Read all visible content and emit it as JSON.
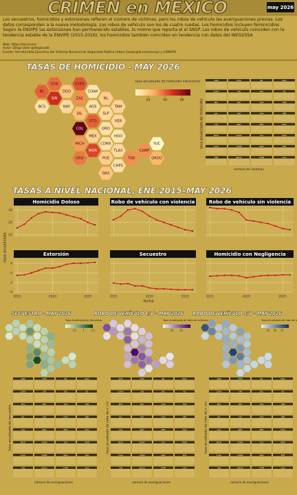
{
  "header": {
    "title": "CRIMEN en MEXICO",
    "date": "may 2026"
  },
  "intro": [
    "Los secuestros, homicidios y extorsiones refieren el número de víctimas, pero los robos de vehículo las averiguaciones previas. Los datos corresponden a la nueva metodología. Los robos de vehículo son los de cuatro ruedas. Los homicidios incluyen feminicidios",
    "Según la ENVIPE las extorsiones han permanecido estables, lo mismo que reporta el el SNSP. Los robos de vehículo coinciden con la tendencia estable de la ENVIPE (2015-2016), los homicidios también coinciden en tendencia con datos del INEGI/SSA"
  ],
  "credits": [
    "Web: https://elcrimen/",
    "Autor: Diego Valle @diegovalle",
    "Fuente: Secretariado Ejecutivo del Sistema Nacional de Seguridad Pública (https://www.gob.mx/sesnsp) y CONAPO"
  ],
  "states": [
    "SON",
    "CHIH",
    "BC",
    "DGO",
    "COAH",
    "SIN",
    "ZAC",
    "NL",
    "BCS",
    "NAY",
    "AGS",
    "TAM",
    "JAL",
    "SLP",
    "GTO",
    "VER",
    "COL",
    "QRO",
    "MEX",
    "HGO",
    "MICH",
    "CDMX",
    "YUC",
    "MOR",
    "TLAX",
    "CAMP",
    "GRO",
    "PUE",
    "TAB",
    "QROO",
    "CHPS",
    "OAX"
  ],
  "homicide_map": {
    "type": "hexmap",
    "title": "TASAS DE HOMICIDIO - MAY 2026",
    "legend_title": "tasa anualizada de homicidio intencional",
    "lim": [
      5,
      70
    ],
    "ticks": [
      20,
      40,
      60
    ],
    "colors": [
      "#fff6c4",
      "#fdae61",
      "#d7301f",
      "#67000d"
    ],
    "values": [
      38,
      42,
      40,
      20,
      10,
      50,
      32,
      18,
      12,
      14,
      12,
      16,
      22,
      14,
      40,
      15,
      72,
      12,
      16,
      10,
      30,
      12,
      5,
      45,
      14,
      32,
      36,
      18,
      32,
      24,
      12,
      20
    ]
  },
  "homicide_panels": {
    "y_label": "tasa anualizada de homicidio",
    "legend_title": "número de víctimas"
  },
  "trends": {
    "title": "TASAS A NIVEL NACIONAL, ENE 2015–MAY 2026",
    "y_label": "tasa anualizada",
    "x_label": "fecha"
  },
  "chart_data": [
    {
      "type": "line",
      "title": "Homicidio Doloso",
      "x": [
        2015,
        2016,
        2017,
        2018,
        2019,
        2020,
        2021,
        2022,
        2023,
        2024,
        2025,
        2026
      ],
      "values": [
        15.5,
        18.5,
        23.5,
        27,
        28.5,
        28,
        27.5,
        26,
        24.5,
        23,
        20,
        18
      ],
      "color": "#d7191c",
      "xlim": [
        2014.5,
        2026.5
      ],
      "xticks": [
        2015,
        2020,
        2025
      ],
      "ylim": [
        8,
        33
      ],
      "yticks": [
        10,
        20,
        30
      ]
    },
    {
      "type": "line",
      "title": "Robo de vehículo con violencia",
      "x": [
        2015,
        2016,
        2017,
        2018,
        2019,
        2020,
        2021,
        2022,
        2023,
        2024,
        2025,
        2026
      ],
      "values": [
        22,
        25,
        30,
        31,
        29,
        25,
        22,
        20,
        18,
        16,
        14,
        13
      ],
      "color": "#d7191c",
      "xlim": [
        2014.5,
        2026.5
      ],
      "xticks": [
        2015,
        2020,
        2025
      ],
      "ylim": [
        8,
        33
      ],
      "yticks": [
        10,
        20,
        30
      ]
    },
    {
      "type": "line",
      "title": "Robo de vehículo sin violencia",
      "x": [
        2015,
        2016,
        2017,
        2018,
        2019,
        2020,
        2021,
        2022,
        2023,
        2024,
        2025,
        2026
      ],
      "values": [
        32,
        31,
        31,
        30,
        28,
        22,
        21,
        20,
        19,
        17,
        15,
        14
      ],
      "color": "#d7191c",
      "xlim": [
        2014.5,
        2026.5
      ],
      "xticks": [
        2015,
        2020,
        2025
      ],
      "ylim": [
        8,
        33
      ],
      "yticks": [
        10,
        20,
        30
      ]
    },
    {
      "type": "line",
      "title": "Extorsión",
      "x": [
        2015,
        2016,
        2017,
        2018,
        2019,
        2020,
        2021,
        2022,
        2023,
        2024,
        2025,
        2026
      ],
      "values": [
        3.5,
        3.6,
        4,
        4.5,
        5,
        5,
        5.3,
        5.8,
        6,
        6,
        6.1,
        6.2
      ],
      "color": "#d7191c",
      "xlim": [
        2014.5,
        2026.5
      ],
      "xticks": [
        2015,
        2020,
        2025
      ],
      "ylim": [
        0,
        7
      ],
      "yticks": [
        0,
        2,
        4,
        6
      ]
    },
    {
      "type": "line",
      "title": "Secuestro",
      "x": [
        2015,
        2016,
        2017,
        2018,
        2019,
        2020,
        2021,
        2022,
        2023,
        2024,
        2025,
        2026
      ],
      "values": [
        1.9,
        1.7,
        1.8,
        1.3,
        1.3,
        0.9,
        0.7,
        0.7,
        0.6,
        0.5,
        0.5,
        0.5
      ],
      "color": "#d7191c",
      "xlim": [
        2014.5,
        2026.5
      ],
      "xticks": [
        2015,
        2020,
        2025
      ],
      "ylim": [
        0,
        7
      ],
      "yticks": [
        0,
        2,
        4,
        6
      ]
    },
    {
      "type": "line",
      "title": "Homicidio con Negligencia",
      "x": [
        2015,
        2016,
        2017,
        2018,
        2019,
        2020,
        2021,
        2022,
        2023,
        2024,
        2025,
        2026
      ],
      "values": [
        3.3,
        3.4,
        3.5,
        3.5,
        3.4,
        3,
        3.2,
        3.4,
        3.5,
        3.5,
        3.6,
        3.6
      ],
      "color": "#d7191c",
      "xlim": [
        2014.5,
        2026.5
      ],
      "xticks": [
        2015,
        2020,
        2025
      ],
      "ylim": [
        0,
        7
      ],
      "yticks": [
        0,
        2,
        4,
        6
      ]
    }
  ],
  "crime_maps": [
    {
      "type": "hexmap",
      "title": "SECUESTRO - MAY 2026",
      "legend_title": "Tasa Anualizada de Secuestro",
      "lim": [
        0,
        1.5
      ],
      "ticks": [
        0.5,
        1,
        1.5
      ],
      "colors": [
        "#e5f5e0",
        "#00441b"
      ],
      "values": [
        0.3,
        0.4,
        0.2,
        0.2,
        0.2,
        0.3,
        0.8,
        0.3,
        0.1,
        0.2,
        0.1,
        0.6,
        0.3,
        0.3,
        0.2,
        0.5,
        0.6,
        0.3,
        0.9,
        0.3,
        0.7,
        0.5,
        0.1,
        1.4,
        0.4,
        0.2,
        0.7,
        0.6,
        0.5,
        0.3,
        0.4,
        0.3
      ]
    },
    {
      "type": "hexmap",
      "title": "ROBO DE VEHÍCULO C/V - MAY 2026",
      "legend_title": "Tasa Anualizada de robo de vehículo c/v",
      "lim": [
        0,
        60
      ],
      "ticks": [
        20,
        40
      ],
      "colors": [
        "#efedf5",
        "#3f007d"
      ],
      "values": [
        10,
        6,
        40,
        5,
        4,
        22,
        30,
        8,
        3,
        10,
        4,
        12,
        36,
        14,
        10,
        12,
        12,
        26,
        58,
        14,
        18,
        38,
        2,
        30,
        28,
        5,
        12,
        34,
        20,
        8,
        3,
        8
      ]
    },
    {
      "type": "hexmap",
      "title": "ROBO DE VEHÍCULO S/V - MAY 2026",
      "legend_title": "Tasa anualizada de robo de vehículo s/v",
      "lim": [
        0,
        100
      ],
      "ticks": [
        25,
        50,
        75
      ],
      "colors": [
        "#deebf7",
        "#08306b"
      ],
      "values": [
        40,
        35,
        80,
        20,
        18,
        55,
        28,
        40,
        10,
        18,
        20,
        22,
        35,
        25,
        32,
        18,
        30,
        45,
        90,
        25,
        32,
        60,
        8,
        45,
        22,
        10,
        20,
        30,
        12,
        12,
        12,
        10
      ]
    }
  ],
  "crime_panels": {
    "y_labels": [
      "tasa anualizada de secuestro",
      "tasa anualizada de robo de v. c/v",
      "tasa anualizada de robo de v. s/v"
    ],
    "legend_title": "número de averiguaciones"
  }
}
